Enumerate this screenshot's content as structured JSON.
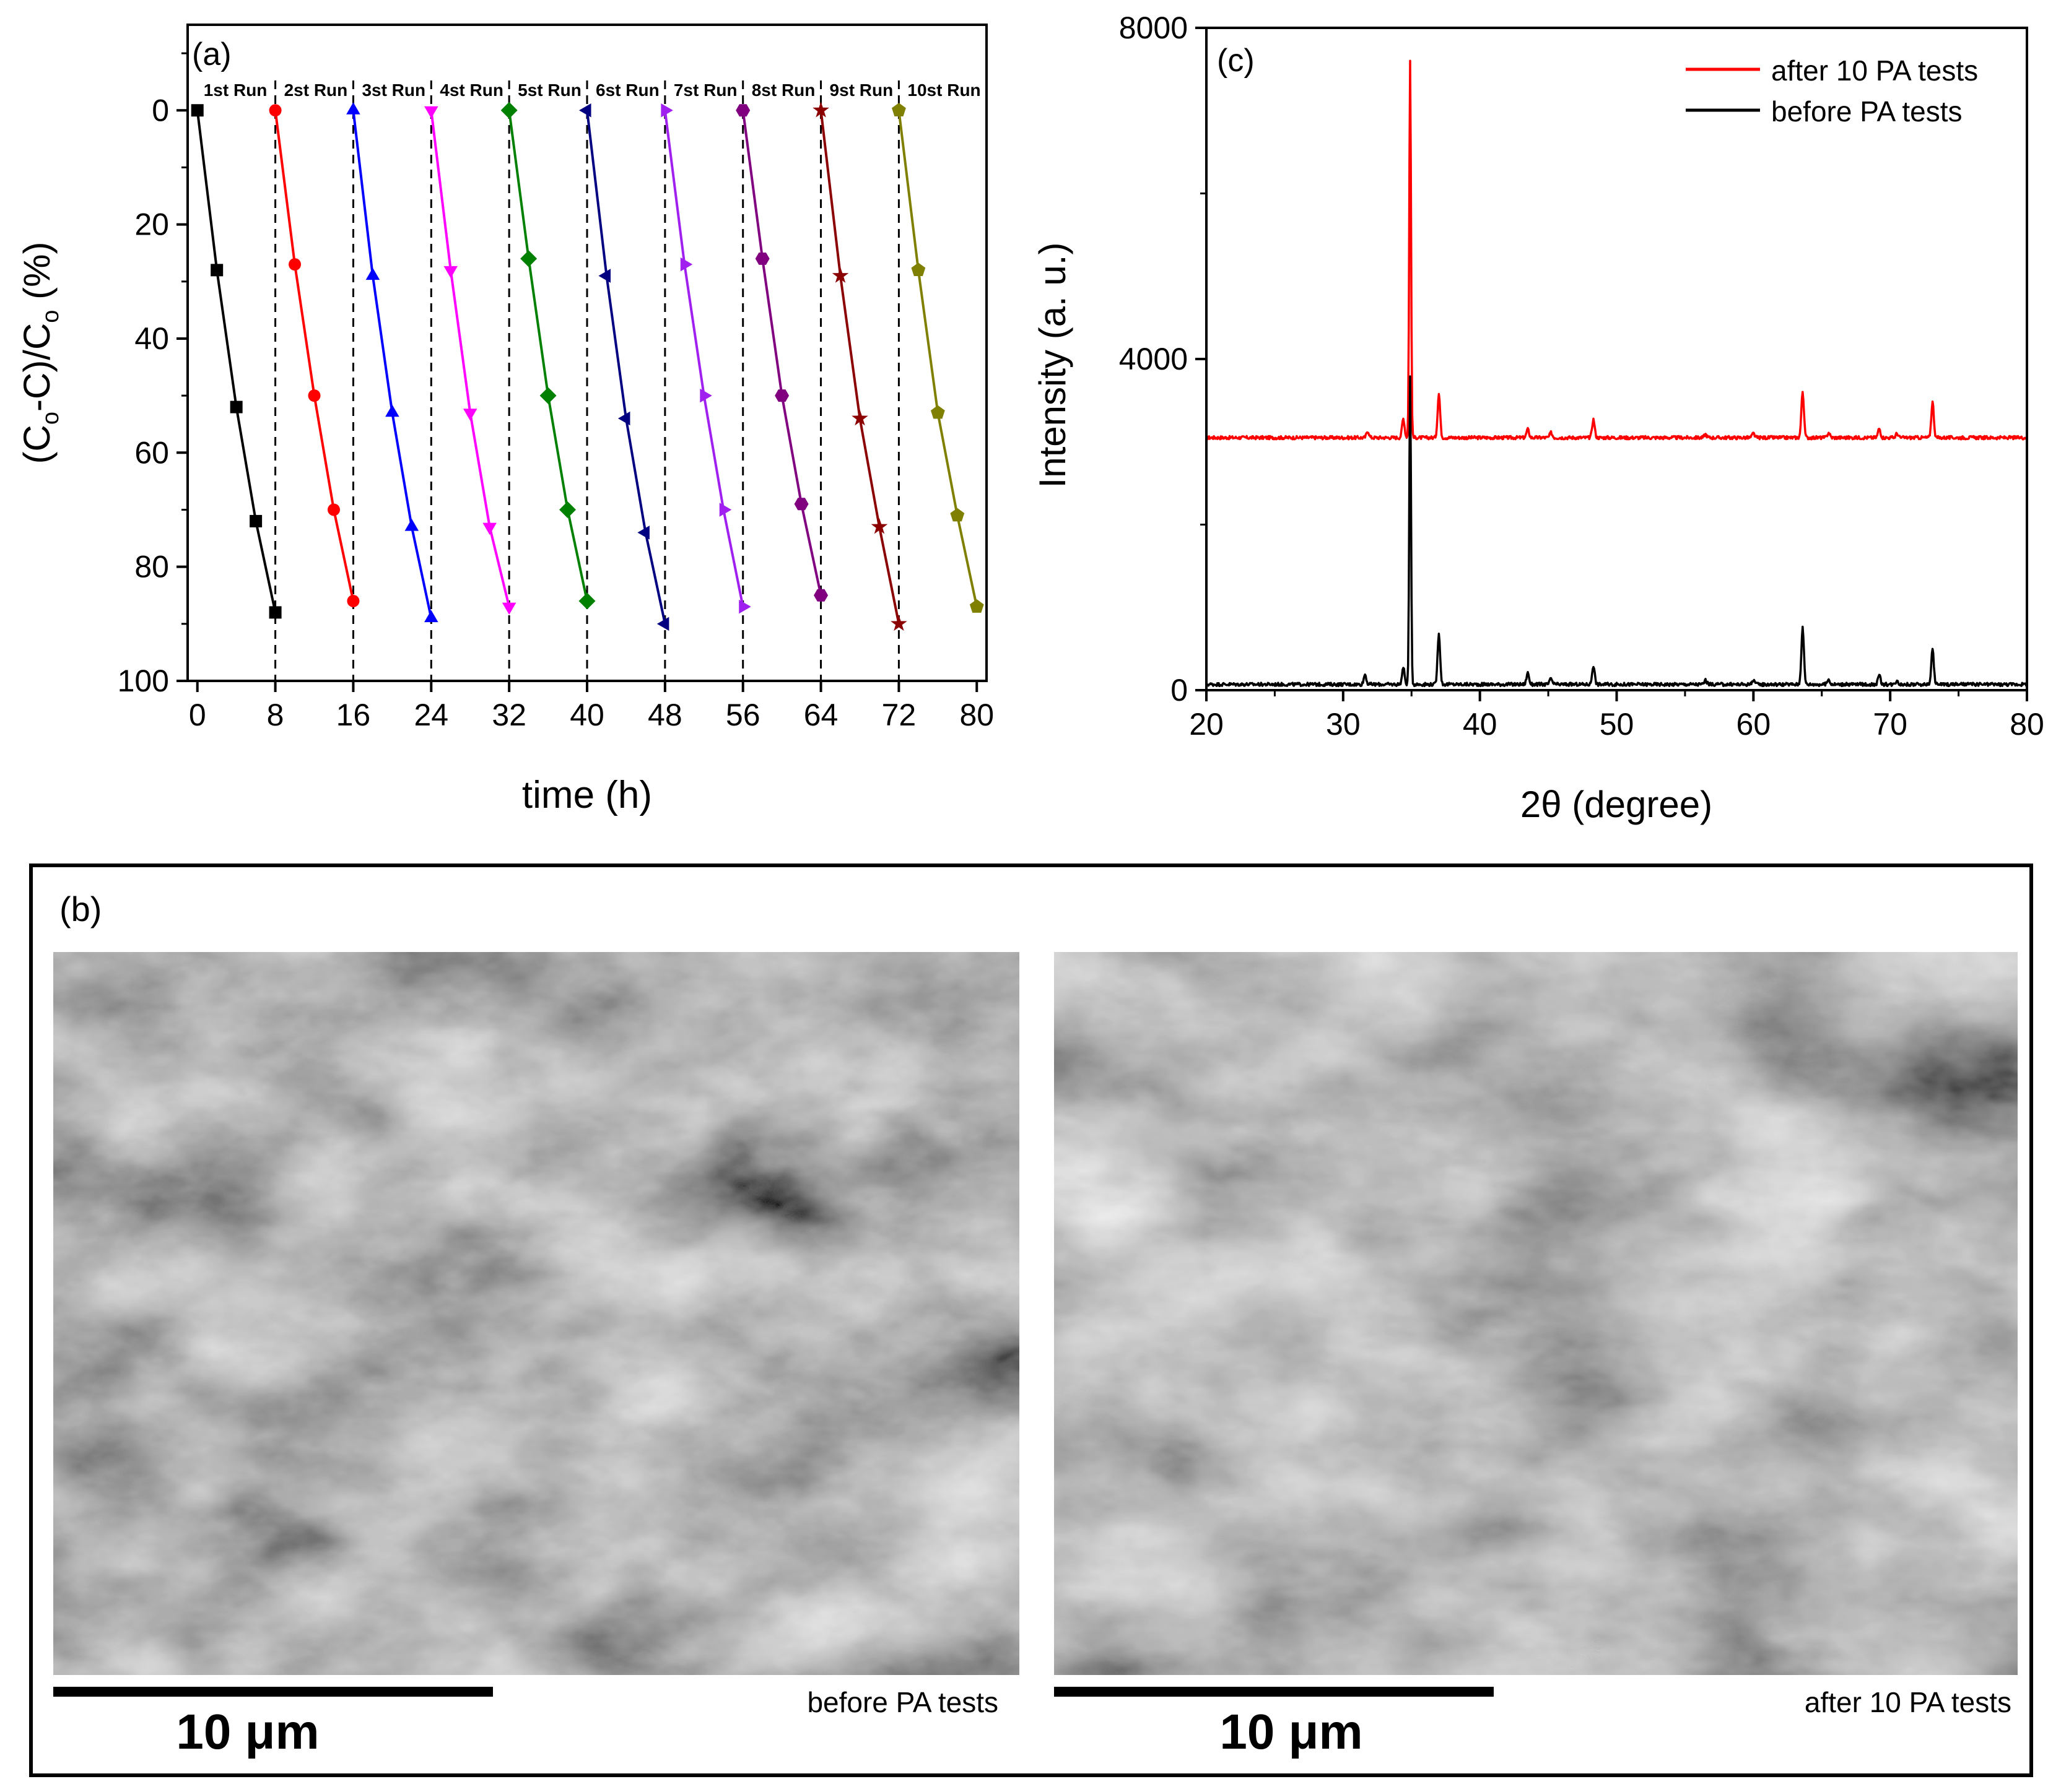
{
  "chart_data": [
    {
      "panel": "(a)",
      "type": "line",
      "xlabel": "time (h)",
      "ylabel_parts": [
        "(C",
        "o",
        "-C)/C",
        "o",
        " (%)"
      ],
      "xlim": [
        -1,
        81
      ],
      "ylim": [
        100,
        -15
      ],
      "y_inverted": true,
      "xticks": [
        0,
        8,
        16,
        24,
        32,
        40,
        48,
        56,
        64,
        72,
        80
      ],
      "yticks": [
        0,
        20,
        40,
        60,
        80,
        100
      ],
      "vlines": [
        8,
        16,
        24,
        32,
        40,
        48,
        56,
        64,
        72
      ],
      "grid": false,
      "series": [
        {
          "name": "1st Run",
          "color": "#000000",
          "marker": "square",
          "x": [
            0,
            2,
            4,
            6,
            8
          ],
          "y": [
            0,
            28,
            52,
            72,
            88
          ]
        },
        {
          "name": "2st Run",
          "color": "#ff0000",
          "marker": "circle",
          "x": [
            8,
            10,
            12,
            14,
            16
          ],
          "y": [
            0,
            27,
            50,
            70,
            86
          ]
        },
        {
          "name": "3st Run",
          "color": "#0000ff",
          "marker": "triangle-up",
          "x": [
            16,
            18,
            20,
            22,
            24
          ],
          "y": [
            0,
            29,
            53,
            73,
            89
          ]
        },
        {
          "name": "4st Run",
          "color": "#ff00ff",
          "marker": "triangle-down",
          "x": [
            24,
            26,
            28,
            30,
            32
          ],
          "y": [
            0,
            28,
            53,
            73,
            87
          ]
        },
        {
          "name": "5st Run",
          "color": "#008000",
          "marker": "diamond",
          "x": [
            32,
            34,
            36,
            38,
            40
          ],
          "y": [
            0,
            26,
            50,
            70,
            86
          ]
        },
        {
          "name": "6st Run",
          "color": "#000080",
          "marker": "triangle-left",
          "x": [
            40,
            42,
            44,
            46,
            48
          ],
          "y": [
            0,
            29,
            54,
            74,
            90
          ]
        },
        {
          "name": "7st Run",
          "color": "#a020f0",
          "marker": "triangle-right",
          "x": [
            48,
            50,
            52,
            54,
            56
          ],
          "y": [
            0,
            27,
            50,
            70,
            87
          ]
        },
        {
          "name": "8st Run",
          "color": "#800080",
          "marker": "hexagon",
          "x": [
            56,
            58,
            60,
            62,
            64
          ],
          "y": [
            0,
            26,
            50,
            69,
            85
          ]
        },
        {
          "name": "9st Run",
          "color": "#8b0000",
          "marker": "star",
          "x": [
            64,
            66,
            68,
            70,
            72
          ],
          "y": [
            0,
            29,
            54,
            73,
            90
          ]
        },
        {
          "name": "10st Run",
          "color": "#808000",
          "marker": "pentagon",
          "x": [
            72,
            74,
            76,
            78,
            80
          ],
          "y": [
            0,
            28,
            53,
            71,
            87
          ]
        }
      ]
    },
    {
      "panel": "(c)",
      "type": "line",
      "xlabel": "2θ (degree)",
      "ylabel": "Intensity (a. u.)",
      "xlim": [
        20,
        80
      ],
      "ylim": [
        0,
        8000
      ],
      "xticks": [
        20,
        30,
        40,
        50,
        60,
        70,
        80
      ],
      "yticks": [
        0,
        4000,
        8000
      ],
      "grid": false,
      "legend_position": "top-right",
      "series": [
        {
          "name": "after 10 PA tests",
          "color": "#ff0000",
          "baseline": 3050,
          "peaks": [
            [
              31.8,
              80
            ],
            [
              34.4,
              230
            ],
            [
              34.9,
              4550
            ],
            [
              37.0,
              530
            ],
            [
              43.5,
              100
            ],
            [
              45.2,
              60
            ],
            [
              48.3,
              220
            ],
            [
              56.5,
              40
            ],
            [
              60.0,
              50
            ],
            [
              63.6,
              560
            ],
            [
              65.5,
              60
            ],
            [
              69.2,
              110
            ],
            [
              70.5,
              50
            ],
            [
              73.1,
              430
            ]
          ]
        },
        {
          "name": "before PA tests",
          "color": "#000000",
          "baseline": 70,
          "peaks": [
            [
              31.6,
              120
            ],
            [
              34.4,
              200
            ],
            [
              34.9,
              3700
            ],
            [
              37.0,
              620
            ],
            [
              43.5,
              140
            ],
            [
              45.2,
              70
            ],
            [
              48.3,
              230
            ],
            [
              56.5,
              50
            ],
            [
              60.0,
              60
            ],
            [
              63.6,
              690
            ],
            [
              65.5,
              60
            ],
            [
              69.2,
              110
            ],
            [
              70.5,
              50
            ],
            [
              73.1,
              420
            ]
          ]
        }
      ]
    }
  ],
  "panel_b": {
    "label": "(b)",
    "images": [
      {
        "scale_label": "10 μm",
        "caption": "before PA tests"
      },
      {
        "scale_label": "10 μm",
        "caption": "after 10 PA tests"
      }
    ]
  }
}
